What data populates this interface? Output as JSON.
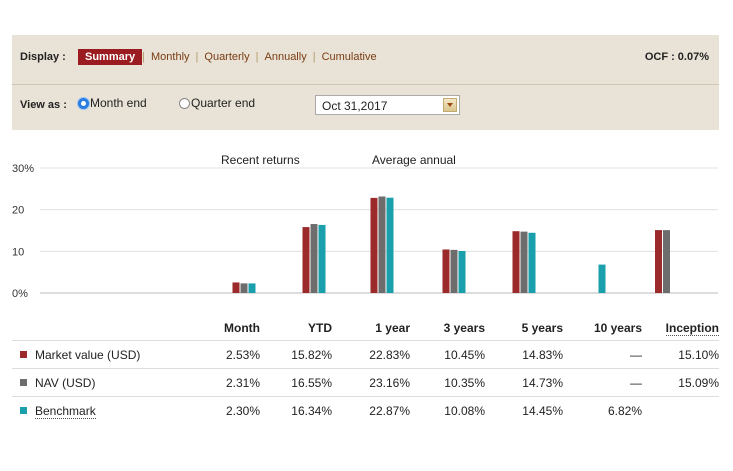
{
  "display": {
    "label": "Display :",
    "tabs": [
      {
        "label": "Summary",
        "active": true
      },
      {
        "label": "Monthly",
        "active": false
      },
      {
        "label": "Quarterly",
        "active": false
      },
      {
        "label": "Annually",
        "active": false
      },
      {
        "label": "Cumulative",
        "active": false
      }
    ],
    "ocf": "OCF : 0.07%"
  },
  "view": {
    "label": "View as :",
    "options": [
      {
        "label": "Month end",
        "checked": true
      },
      {
        "label": "Quarter end",
        "checked": false
      }
    ],
    "date_value": "Oct 31,2017"
  },
  "chart_data": {
    "type": "bar",
    "group_labels": [
      "Recent returns",
      "Average annual"
    ],
    "categories": [
      "Month",
      "YTD",
      "1 year",
      "3 years",
      "5 years",
      "10 years",
      "Inception"
    ],
    "yticks": [
      "30%",
      "20",
      "10",
      "0%"
    ],
    "ylim": [
      0,
      30
    ],
    "grid": true,
    "series": [
      {
        "name": "Market value (USD)",
        "color": "#9b2a2a",
        "values": [
          2.53,
          15.82,
          22.83,
          10.45,
          14.83,
          null,
          15.1
        ]
      },
      {
        "name": "NAV (USD)",
        "color": "#6d6d6d",
        "values": [
          2.31,
          16.55,
          23.16,
          10.35,
          14.73,
          null,
          15.09
        ]
      },
      {
        "name": "Benchmark",
        "color": "#1aa0ad",
        "values": [
          2.3,
          16.34,
          22.87,
          10.08,
          14.45,
          6.82,
          null
        ]
      }
    ]
  },
  "table": {
    "headers": [
      "Month",
      "YTD",
      "1 year",
      "3 years",
      "5 years",
      "10 years",
      "Inception"
    ],
    "rows": [
      {
        "name": "Market value (USD)",
        "color": "#9b2a2a",
        "cells": [
          "2.53%",
          "15.82%",
          "22.83%",
          "10.45%",
          "14.83%",
          "—",
          "15.10%"
        ]
      },
      {
        "name": "NAV (USD)",
        "color": "#6d6d6d",
        "cells": [
          "2.31%",
          "16.55%",
          "23.16%",
          "10.35%",
          "14.73%",
          "—",
          "15.09%"
        ]
      },
      {
        "name": "Benchmark",
        "color": "#1aa0ad",
        "cells": [
          "2.30%",
          "16.34%",
          "22.87%",
          "10.08%",
          "14.45%",
          "6.82%",
          ""
        ]
      }
    ]
  }
}
